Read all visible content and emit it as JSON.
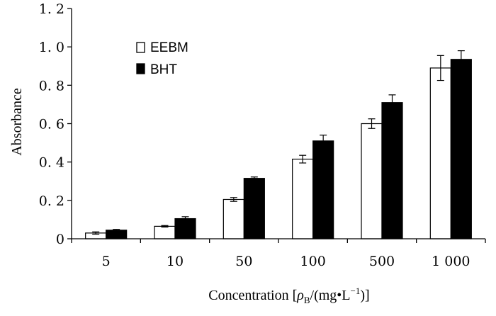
{
  "chart_data": {
    "type": "bar",
    "title": "",
    "xlabel": {
      "prefix": "Concentration [",
      "rho": "ρ",
      "sub": "B",
      "middle": "/(mg•L",
      "sup": "−1",
      "suffix": ")]"
    },
    "ylabel": "Absorbance",
    "categories": [
      "5",
      "10",
      "50",
      "100",
      "500",
      "1 000"
    ],
    "ylim": [
      0,
      1.2
    ],
    "yticks": [
      {
        "value": 0,
        "label": "0"
      },
      {
        "value": 0.2,
        "label": "0. 2"
      },
      {
        "value": 0.4,
        "label": "0. 4"
      },
      {
        "value": 0.6,
        "label": "0. 6"
      },
      {
        "value": 0.8,
        "label": "0. 8"
      },
      {
        "value": 1.0,
        "label": "1. 0"
      },
      {
        "value": 1.2,
        "label": "1. 2"
      }
    ],
    "series": [
      {
        "name": "EEBM",
        "fill": "#ffffff",
        "values": [
          0.03,
          0.065,
          0.205,
          0.415,
          0.6,
          0.89
        ],
        "errors": [
          0.006,
          0.004,
          0.01,
          0.02,
          0.025,
          0.065
        ]
      },
      {
        "name": "BHT",
        "fill": "#000000",
        "values": [
          0.045,
          0.105,
          0.315,
          0.51,
          0.71,
          0.935
        ],
        "errors": [
          0.004,
          0.01,
          0.007,
          0.03,
          0.04,
          0.045
        ]
      }
    ],
    "legend_position": "top-left"
  }
}
